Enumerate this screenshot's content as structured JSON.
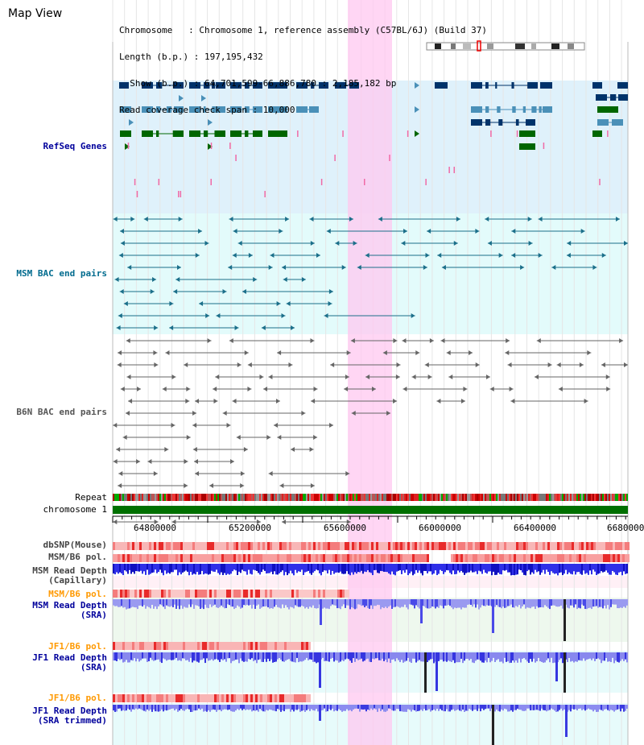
{
  "header": {
    "title": "Map View",
    "info_lines": [
      "Chromosome   : Chromosome 1, reference assembly (C57BL/6J) (Build 37)",
      "Length (b.p.) : 197,195,432",
      "  Show (b.p.) : 64,701,599-66,886,780 : 2,185,182 bp",
      "Read coverage check span : 10,000"
    ]
  },
  "tracks": {
    "refseq": {
      "label": "RefSeq Genes",
      "color": "#00009c"
    },
    "msm_bac": {
      "label": "MSM BAC end pairs",
      "color": "#006b8e"
    },
    "b6n_bac": {
      "label": "B6N BAC end pairs",
      "color": "#555555"
    },
    "repeat": {
      "label": "Repeat"
    },
    "chromosome": {
      "label": "chromosome 1"
    },
    "dbsnp": {
      "label": "dbSNP(Mouse)"
    },
    "msm_b6_pol": {
      "label": "MSM/B6 pol."
    },
    "msm_depth_cap": {
      "label": "MSM Read Depth",
      "label2": "(Capillary)"
    },
    "msm_b6_pol2": {
      "label": "MSM/B6 pol.",
      "color": "#ff9900"
    },
    "msm_depth_sra": {
      "label": "MSM Read Depth",
      "label2": "(SRA)",
      "color": "#00009c"
    },
    "jf1_b6_pol": {
      "label": "JF1/B6 pol.",
      "color": "#ff9900"
    },
    "jf1_depth_sra": {
      "label": "JF1 Read Depth",
      "label2": "(SRA)",
      "color": "#00009c"
    },
    "jf1_b6_pol2": {
      "label": "JF1/B6 pol.",
      "color": "#ff9900"
    },
    "jf1_depth_trim": {
      "label": "JF1 Read Depth",
      "label2": "(SRA trimmed)",
      "color": "#00009c"
    }
  },
  "axis": {
    "ticks": [
      "64800000",
      "65200000",
      "65600000",
      "66000000",
      "66400000",
      "6680000"
    ]
  },
  "colors": {
    "highlight": "#ffc8f0",
    "refseq_bg": "#dff1fb",
    "msm_bac_bg": "#e3fbfb",
    "gene_navy": "#00336a",
    "gene_teal": "#4a90b8",
    "gene_green": "#006600",
    "chrom_bar": "#007000",
    "depth_blue": "#2020e0"
  }
}
